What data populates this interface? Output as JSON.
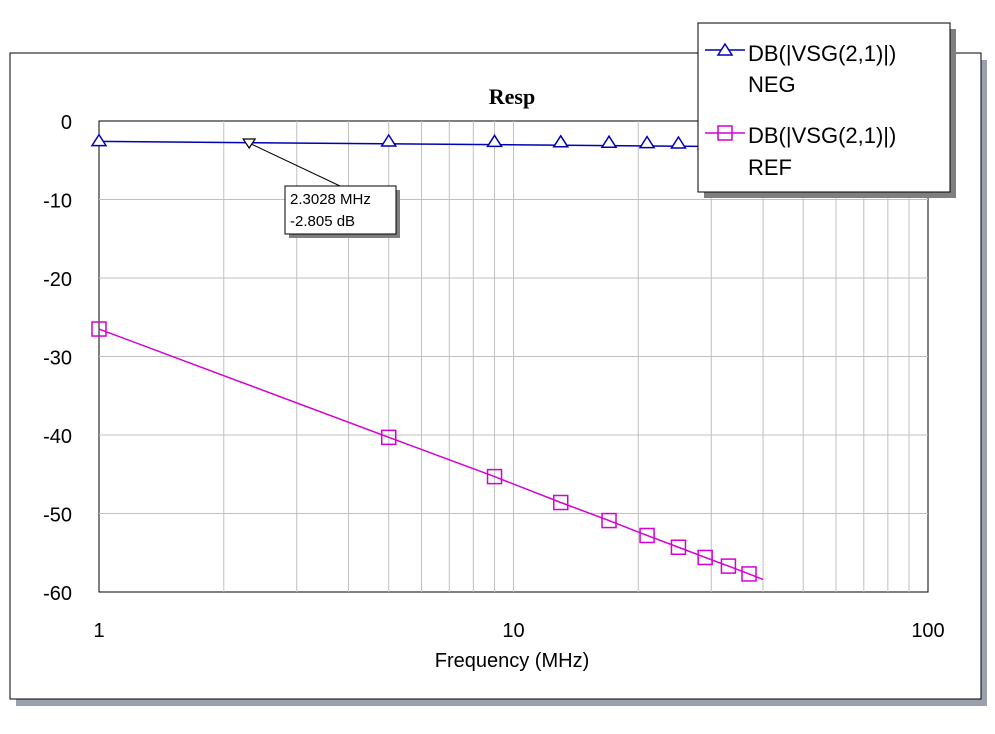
{
  "chart_data": {
    "type": "line",
    "title": "Resp",
    "xlabel": "Frequency (MHz)",
    "ylabel": "",
    "xscale": "log",
    "xlim": [
      1,
      100
    ],
    "ylim": [
      -60,
      0
    ],
    "grid": true,
    "legend_position": "top-right",
    "x_tick_labels": [
      "1",
      "10",
      "100"
    ],
    "y_tick_labels": [
      "0",
      "-10",
      "-20",
      "-30",
      "-40",
      "-50",
      "-60"
    ],
    "series": [
      {
        "name": "DB(|VSG(2,1)|)\nNEG",
        "legend_line1": "DB(|VSG(2,1)|)",
        "legend_line2": "NEG",
        "color": "#0000b4",
        "marker": "triangle",
        "x": [
          1,
          40
        ],
        "y": [
          -2.6,
          -3.3
        ],
        "marker_x": [
          1,
          5,
          9,
          13,
          17,
          21,
          25,
          29,
          33,
          37
        ],
        "marker_y": [
          -2.5,
          -2.55,
          -2.6,
          -2.65,
          -2.7,
          -2.75,
          -2.8,
          -2.9,
          -3.0,
          -3.1
        ]
      },
      {
        "name": "DB(|VSG(2,1)|)\nREF",
        "legend_line1": "DB(|VSG(2,1)|)",
        "legend_line2": "REF",
        "color": "#d400d4",
        "marker": "square",
        "x": [
          1,
          5,
          9,
          13,
          17,
          21,
          25,
          29,
          33,
          37,
          40
        ],
        "y": [
          -26.5,
          -40.3,
          -45.3,
          -48.6,
          -50.9,
          -52.8,
          -54.3,
          -55.6,
          -56.7,
          -57.7,
          -58.4
        ],
        "marker_x": [
          1,
          5,
          9,
          13,
          17,
          21,
          25,
          29,
          33,
          37
        ],
        "marker_y": [
          -26.5,
          -40.3,
          -45.3,
          -48.6,
          -50.9,
          -52.8,
          -54.3,
          -55.6,
          -56.7,
          -57.7
        ]
      }
    ],
    "annotations": [
      {
        "x": 2.3028,
        "y": -2.805,
        "marker": "triangle-down",
        "line1": "2.3028 MHz",
        "line2": "-2.805 dB"
      }
    ]
  }
}
